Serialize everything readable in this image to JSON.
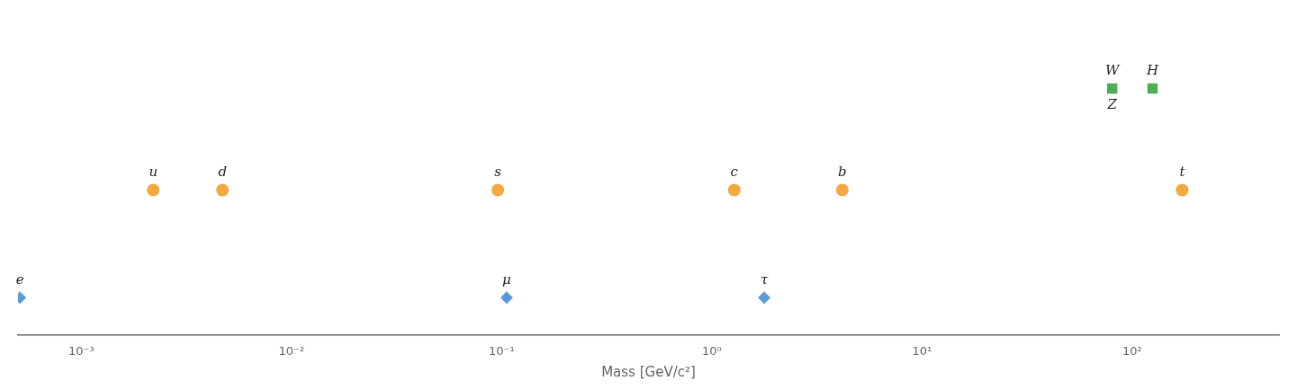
{
  "chart_data": {
    "type": "scatter",
    "xlabel": "Mass [GeV/c²]",
    "log": "x",
    "xlim": [
      0.0005,
      500.0
    ],
    "xticks": [
      {
        "value": 0.001,
        "label": "10⁻³"
      },
      {
        "value": 0.01,
        "label": "10⁻²"
      },
      {
        "value": 0.1,
        "label": "10⁻¹"
      },
      {
        "value": 1,
        "label": "10⁰"
      },
      {
        "value": 10,
        "label": "10¹"
      },
      {
        "value": 100,
        "label": "10²"
      }
    ],
    "grid": false,
    "tick_labels": "x",
    "series": [
      {
        "color": "#f5a742",
        "marker": "circle",
        "values": [
          0.0022,
          0.0047,
          0.096,
          1.28,
          4.18,
          173.1
        ],
        "labels": [
          "u",
          "d",
          "s",
          "c",
          "b",
          "t"
        ]
      },
      {
        "color": "#5b9bd5",
        "marker": "diamond",
        "values": [
          0.000511,
          0.1057,
          1.777
        ],
        "labels": [
          "e",
          "μ",
          "τ"
        ]
      },
      {
        "color": "#4caf50",
        "marker": "square",
        "values": [
          80.4,
          125.1
        ],
        "labels": [
          "W",
          "H"
        ]
      }
    ],
    "annotations": [
      {
        "text": "Z",
        "x": 80.4
      }
    ]
  }
}
